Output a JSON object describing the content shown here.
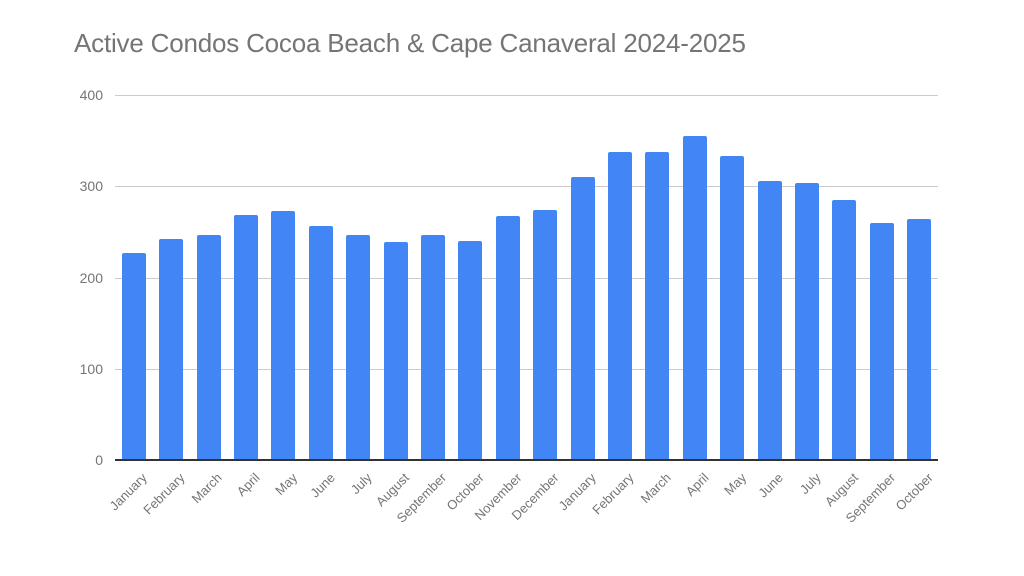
{
  "chart_data": {
    "type": "bar",
    "title": "Active Condos Cocoa Beach & Cape Canaveral 2024-2025",
    "xlabel": "",
    "ylabel": "",
    "ylim": [
      0,
      400
    ],
    "yticks": [
      "400",
      "300",
      "200",
      "100",
      "0"
    ],
    "grid": true,
    "legend": "none",
    "bar_color": "#4285f4",
    "categories": [
      "January",
      "February",
      "March",
      "April",
      "May",
      "June",
      "July",
      "August",
      "September",
      "October",
      "November",
      "December",
      "January",
      "February",
      "March",
      "April",
      "May",
      "June",
      "July",
      "August",
      "September",
      "October"
    ],
    "values": [
      227,
      242,
      247,
      269,
      273,
      256,
      247,
      239,
      247,
      240,
      267,
      274,
      310,
      338,
      338,
      355,
      333,
      306,
      304,
      285,
      260,
      264
    ]
  }
}
